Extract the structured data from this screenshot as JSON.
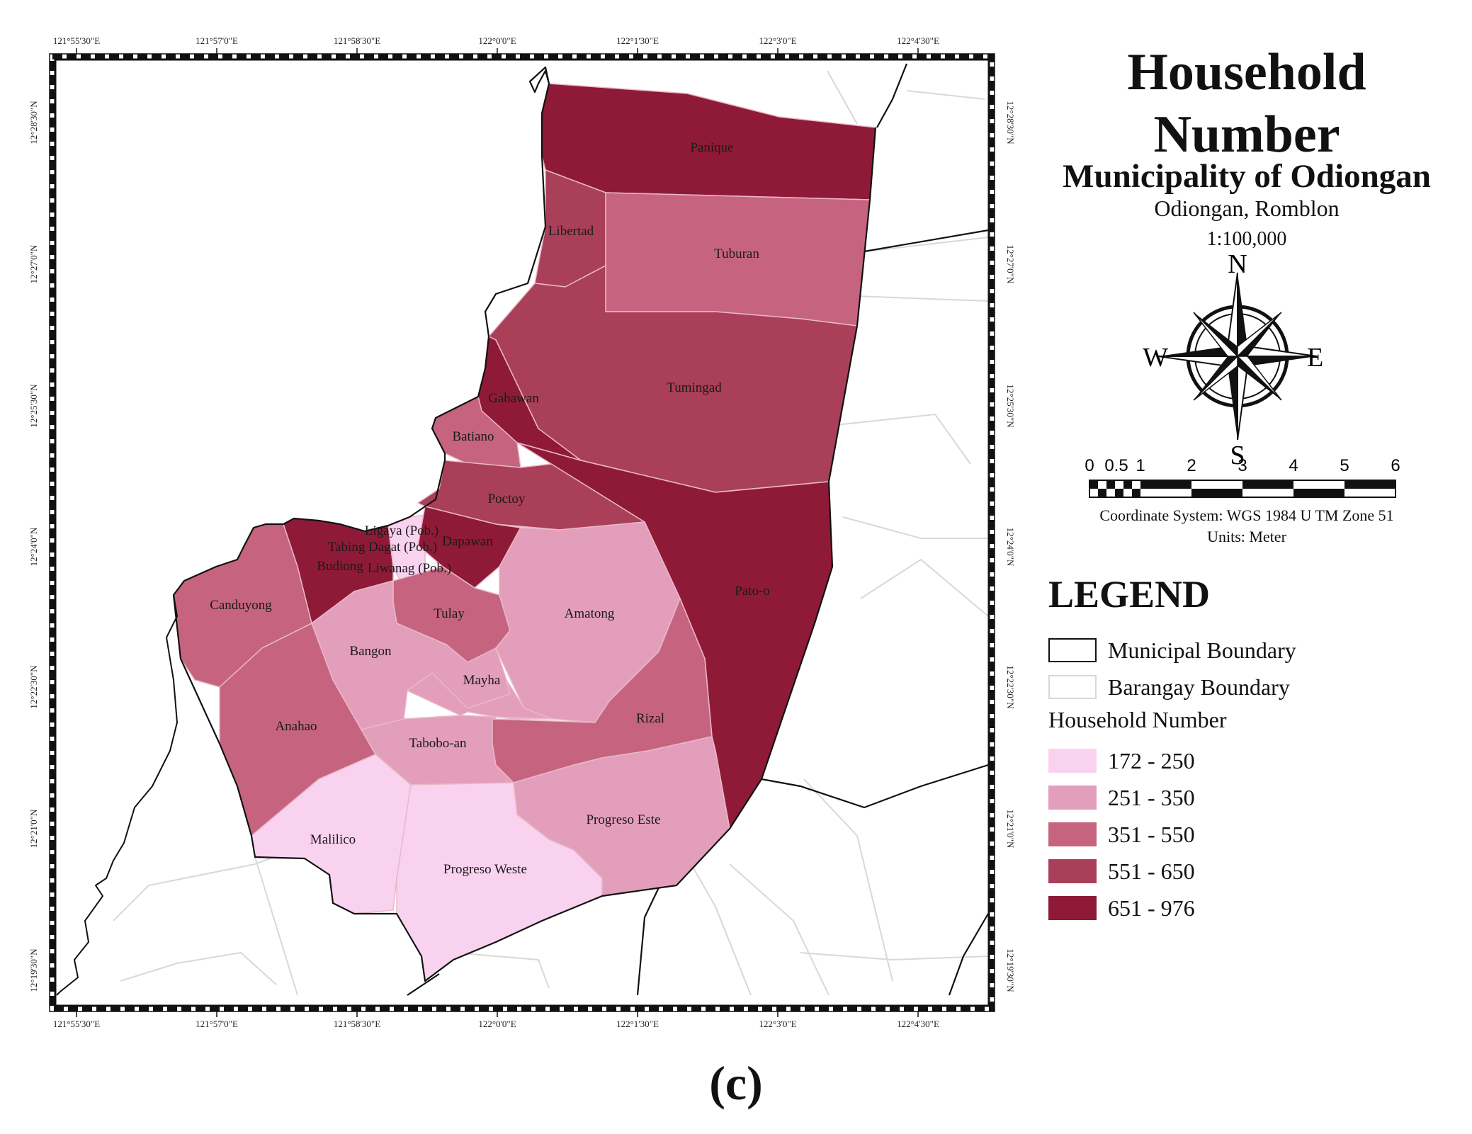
{
  "title": {
    "main": "Household Number",
    "subtitle": "Municipality of Odiongan",
    "location": "Odiongan, Romblon",
    "scale": "1:100,000"
  },
  "compass": {
    "n": "N",
    "s": "S",
    "e": "E",
    "w": "W"
  },
  "scalebar": {
    "labels": [
      "0",
      "0.5",
      "1",
      "2",
      "3",
      "4",
      "5",
      "6"
    ]
  },
  "coordinate_system": "Coordinate System: WGS 1984 U TM Zone 51",
  "units": "Units: Meter",
  "legend": {
    "title": "LEGEND",
    "boundaries": [
      {
        "label": "Municipal Boundary"
      },
      {
        "label": "Barangay Boundary"
      }
    ],
    "class_title": "Household Number",
    "classes": [
      {
        "label": "172 - 250",
        "color": "#f9d2f0"
      },
      {
        "label": "251 - 350",
        "color": "#e39ebb"
      },
      {
        "label": "351 - 550",
        "color": "#c6647f"
      },
      {
        "label": "551 - 650",
        "color": "#a93f59"
      },
      {
        "label": "651 - 976",
        "color": "#8f1a38"
      }
    ]
  },
  "axes": {
    "lon_ticks": [
      "121°55'30\"E",
      "121°57'0\"E",
      "121°58'30\"E",
      "122°0'0\"E",
      "122°1'30\"E",
      "122°3'0\"E",
      "122°4'30\"E"
    ],
    "lat_ticks": [
      "12°28'30\"N",
      "12°27'0\"N",
      "12°25'30\"N",
      "12°24'0\"N",
      "12°22'30\"N",
      "12°21'0\"N",
      "12°19'30\"N"
    ]
  },
  "barangays": [
    {
      "name": "Panique",
      "class": 4
    },
    {
      "name": "Libertad",
      "class": 3
    },
    {
      "name": "Tuburan",
      "class": 2
    },
    {
      "name": "Tumingad",
      "class": 3
    },
    {
      "name": "Gabawan",
      "class": 4
    },
    {
      "name": "Batiano",
      "class": 2
    },
    {
      "name": "Poctoy",
      "class": 3
    },
    {
      "name": "Pato-o",
      "class": 4
    },
    {
      "name": "Ligaya (Pob.)",
      "class": 0
    },
    {
      "name": "Tabing Dagat (Pob.)",
      "class": 0
    },
    {
      "name": "Liwanag (Pob.)",
      "class": 0
    },
    {
      "name": "Dapawan",
      "class": 4
    },
    {
      "name": "Budiong",
      "class": 4
    },
    {
      "name": "Canduyong",
      "class": 2
    },
    {
      "name": "Tulay",
      "class": 2
    },
    {
      "name": "Amatong",
      "class": 1
    },
    {
      "name": "Bangon",
      "class": 1
    },
    {
      "name": "Mayha",
      "class": 1
    },
    {
      "name": "Anahao",
      "class": 2
    },
    {
      "name": "Tabobo-an",
      "class": 1
    },
    {
      "name": "Rizal",
      "class": 2
    },
    {
      "name": "Malilico",
      "class": 0
    },
    {
      "name": "Progreso Weste",
      "class": 0
    },
    {
      "name": "Progreso Este",
      "class": 1
    }
  ],
  "caption": "(c)"
}
